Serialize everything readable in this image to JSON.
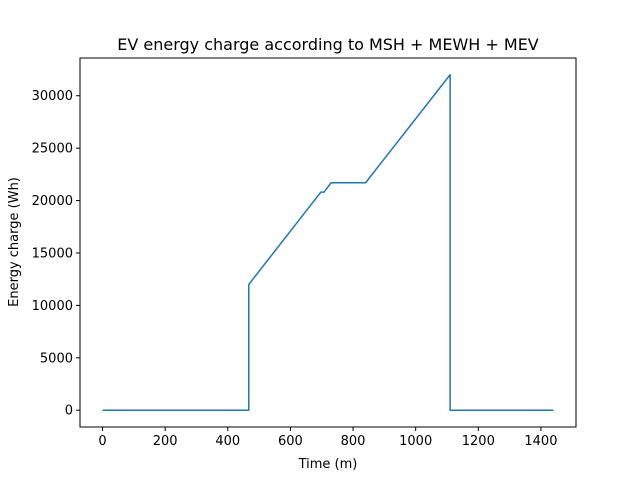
{
  "chart_data": {
    "type": "line",
    "title": "EV energy charge according to MSH + MEWH + MEV",
    "xlabel": "Time (m)",
    "ylabel": "Energy charge (Wh)",
    "xlim": [
      -72,
      1512
    ],
    "ylim": [
      -1600,
      33600
    ],
    "xticks": [
      0,
      200,
      400,
      600,
      800,
      1000,
      1200,
      1400
    ],
    "yticks": [
      0,
      5000,
      10000,
      15000,
      20000,
      25000,
      30000
    ],
    "xtick_labels": [
      "0",
      "200",
      "400",
      "600",
      "800",
      "1000",
      "1200",
      "1400"
    ],
    "ytick_labels": [
      "0",
      "5000",
      "10000",
      "15000",
      "20000",
      "25000",
      "30000"
    ],
    "grid": false,
    "series": [
      {
        "color": "#1f77b4",
        "x": [
          0,
          467,
          467,
          697,
          707,
          730,
          840,
          1110,
          1110,
          1440
        ],
        "y": [
          0,
          0,
          12000,
          20800,
          20800,
          21700,
          21700,
          32000,
          0,
          0
        ]
      }
    ]
  }
}
